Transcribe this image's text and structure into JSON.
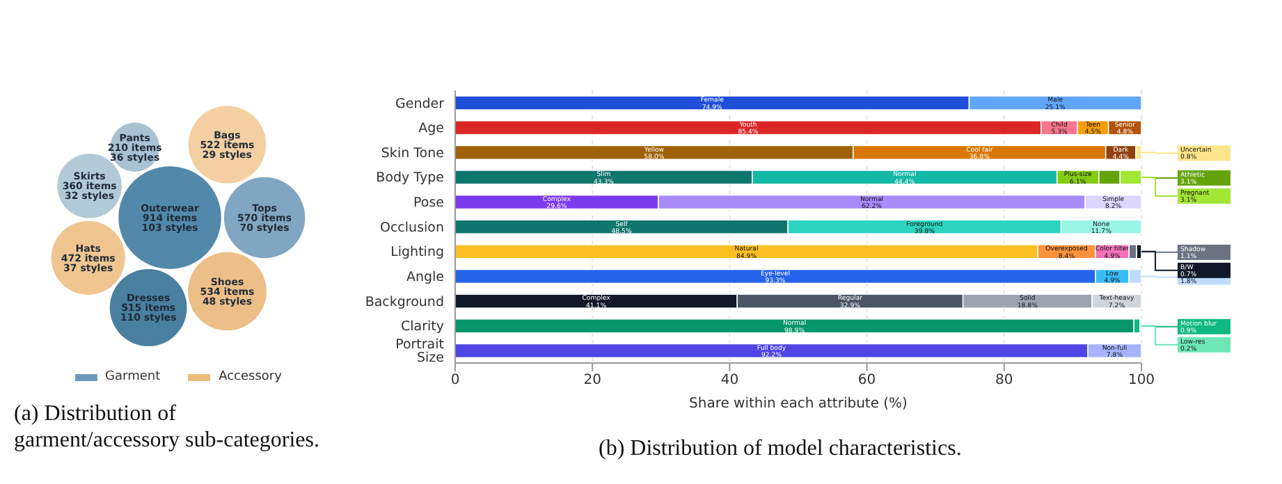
{
  "chart_data": [
    {
      "type": "other",
      "title": "(a) Distribution of garment/accessory sub-categories.",
      "categories": [
        "Dresses",
        "Shoes",
        "Skirts",
        "Tops",
        "Outerwear",
        "Pants",
        "Hats",
        "Bags"
      ],
      "legend": "bottom",
      "series": [
        {
          "name": "Garment",
          "color": "#6a9bbd",
          "colors": [
            "#497f9f",
            null,
            "#b2c9d8",
            "#80a6c1",
            "#5289aa",
            "#a9c2d3",
            null,
            null
          ],
          "values": [
            515,
            null,
            360,
            570,
            914,
            210,
            null,
            null
          ],
          "value_labels": [
            "515 items\n110 styles",
            null,
            "360 items\n32 styles",
            "570 items\n70 styles",
            "914 items\n103 styles",
            "210 items\n36 styles",
            null,
            null
          ]
        },
        {
          "name": "Accessory",
          "color": "#edba7c",
          "colors": [
            null,
            "#ecbf88",
            null,
            null,
            null,
            null,
            "#f0c590",
            "#f3cfa2"
          ],
          "values": [
            null,
            534,
            null,
            null,
            null,
            null,
            472,
            522
          ],
          "value_labels": [
            null,
            "534 items\n48 styles",
            null,
            null,
            null,
            null,
            "472 items\n37 styles",
            "522 items\n29 styles"
          ]
        }
      ]
    },
    {
      "type": "bar",
      "orientation": "horizontal",
      "stacked": true,
      "title": "(b) Distribution of model characteristics.",
      "xlabel": "Share within each attribute (%)",
      "xlim": [
        0,
        100
      ],
      "xticks": [
        0,
        20,
        40,
        60,
        80,
        100
      ],
      "grid": "x",
      "categories": [
        "Gender",
        "Age",
        "Skin Tone",
        "Body Type",
        "Pose",
        "Occlusion",
        "Lighting",
        "Angle",
        "Background",
        "Clarity",
        "Portrait Size"
      ],
      "series": [
        {
          "colors": [
            "#1f4fd8",
            "#dc2626",
            "#a16207",
            "#0f766e",
            "#7c3aed",
            "#0f766e",
            "#fbbf24",
            "#2563eb",
            "#111827",
            "#059669",
            "#4f46e5"
          ],
          "values": [
            74.9,
            85.4,
            58.0,
            43.3,
            29.6,
            48.5,
            84.9,
            93.3,
            41.1,
            98.9,
            92.2
          ],
          "value_labels": [
            "Female\n74.9%",
            "Youth\n85.4%",
            "Yellow\n58.0%",
            "Slim\n43.3%",
            "Complex\n29.6%",
            "Self\n48.5%",
            "Natural\n84.9%",
            "Eye-level\n93.3%",
            "Complex\n41.1%",
            "Normal\n98.9%",
            "Full body\n92.2%"
          ]
        },
        {
          "colors": [
            "#60a5fa",
            "#f7768e",
            "#d97706",
            "#14b8a6",
            "#a78bfa",
            "#2dd4bf",
            "#fb923c",
            "#38bdf8",
            "#4b5563",
            "#10b981",
            "#a5b4fc"
          ],
          "values": [
            25.1,
            5.3,
            36.8,
            44.4,
            62.2,
            39.8,
            8.4,
            4.9,
            32.9,
            0.9,
            7.8
          ],
          "value_labels": [
            "Male\n25.1%",
            "Child\n5.3%",
            "Cool fair\n36.8%",
            "Normal\n44.4%",
            "Normal\n62.2%",
            "Foreground\n39.8%",
            "Overexposed\n8.4%",
            "Low\n4.9%",
            "Regular\n32.9%",
            "Motion blur\n0.9%",
            "Non-full\n7.8%"
          ]
        },
        {
          "colors": [
            null,
            "#f59e0b",
            "#92400e",
            "#84cc16",
            "#ddd6fe",
            "#99f6e4",
            "#f472b6",
            "#bfdbfe",
            "#9ca3af",
            "#6ee7b7",
            null
          ],
          "values": [
            null,
            4.5,
            4.4,
            6.1,
            8.2,
            11.7,
            4.9,
            1.8,
            18.8,
            0.2,
            null
          ],
          "value_labels": [
            null,
            "Teen\n4.5%",
            "Dark\n4.4%",
            "Plus-size\n6.1%",
            "Simple\n8.2%",
            "None\n11.7%",
            "Color filter\n4.9%",
            "High\n1.8%",
            "Solid\n18.8%",
            "Low-res\n0.2%",
            null
          ]
        },
        {
          "colors": [
            null,
            "#b45309",
            "#fde68a",
            "#65a30d",
            null,
            null,
            "#6b7280",
            null,
            "#d1d5db",
            null,
            null
          ],
          "values": [
            null,
            4.8,
            0.8,
            3.1,
            null,
            null,
            1.1,
            null,
            7.2,
            null,
            null
          ],
          "value_labels": [
            null,
            "Senior\n4.8%",
            "Uncertain\n0.8%",
            "Athletic\n3.1%",
            null,
            null,
            "Shadow\n1.1%",
            null,
            "Text-heavy\n7.2%",
            null,
            null
          ]
        },
        {
          "colors": [
            null,
            null,
            null,
            "#a3e635",
            null,
            null,
            "#111827",
            null,
            null,
            null,
            null
          ],
          "values": [
            null,
            null,
            null,
            3.1,
            null,
            null,
            0.7,
            null,
            null,
            null,
            null
          ],
          "value_labels": [
            null,
            null,
            null,
            "Pregnant\n3.1%",
            null,
            null,
            "B/W\n0.7%",
            null,
            null,
            null,
            null
          ]
        }
      ]
    }
  ]
}
